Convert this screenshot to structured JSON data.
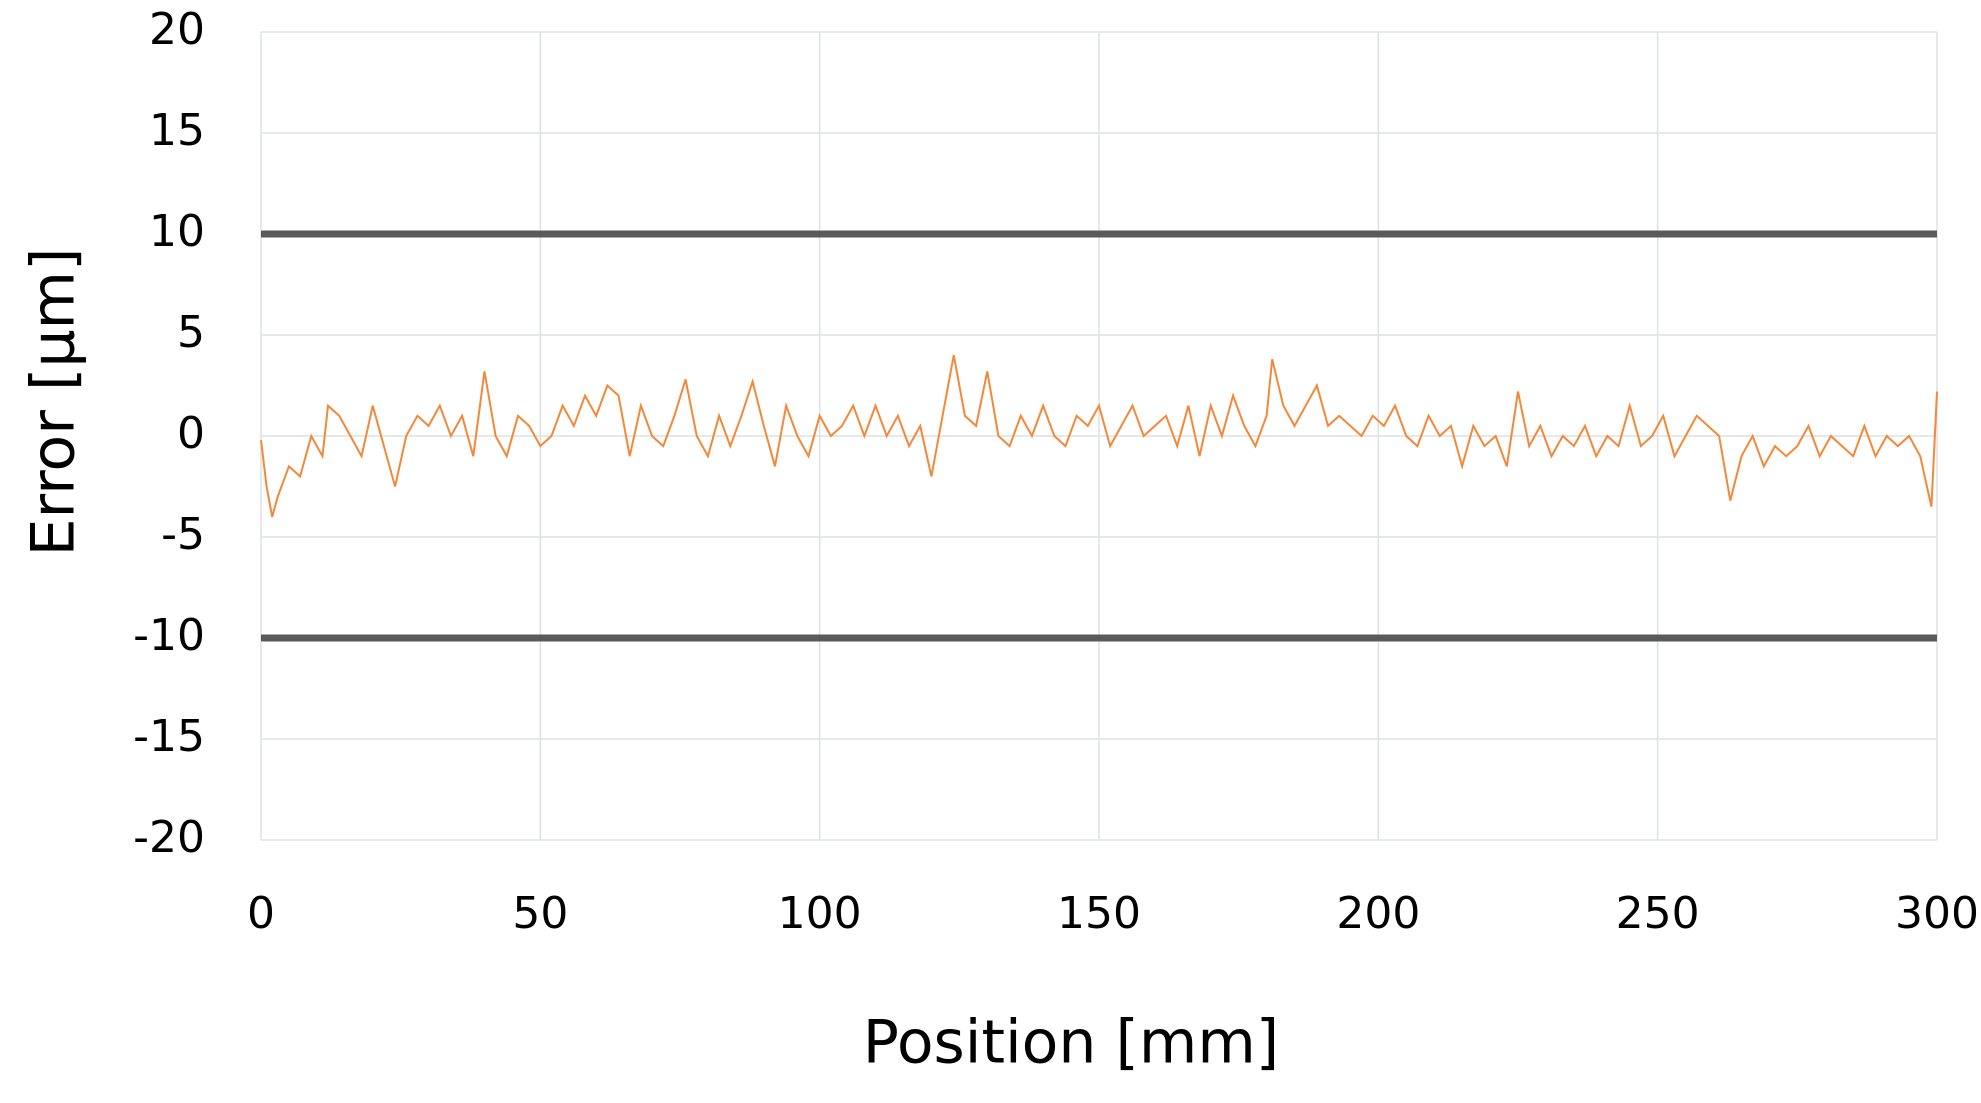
{
  "chart_data": {
    "type": "line",
    "xlabel": "Position [mm]",
    "ylabel": "Error [µm]",
    "xlim": [
      0,
      300
    ],
    "xticks": [
      0,
      50,
      100,
      150,
      200,
      250,
      300
    ],
    "ylim": [
      -20,
      20
    ],
    "yticks": [
      -20,
      -15,
      -10,
      -5,
      0,
      5,
      10,
      15,
      20
    ],
    "grid": true,
    "series": [
      {
        "color": "#f4883a",
        "width": 2,
        "x": [
          0,
          1,
          2,
          3,
          5,
          7,
          9,
          11,
          12,
          14,
          16,
          18,
          20,
          22,
          24,
          26,
          28,
          30,
          32,
          34,
          36,
          38,
          40,
          42,
          44,
          46,
          48,
          50,
          52,
          54,
          56,
          58,
          60,
          62,
          64,
          66,
          68,
          70,
          72,
          74,
          76,
          78,
          80,
          82,
          84,
          86,
          88,
          90,
          92,
          94,
          96,
          98,
          100,
          102,
          104,
          106,
          108,
          110,
          112,
          114,
          116,
          118,
          120,
          122,
          124,
          126,
          128,
          130,
          132,
          134,
          136,
          138,
          140,
          142,
          144,
          146,
          148,
          150,
          152,
          154,
          156,
          158,
          160,
          162,
          164,
          166,
          168,
          170,
          172,
          174,
          176,
          178,
          180,
          181,
          183,
          185,
          187,
          189,
          191,
          193,
          195,
          197,
          199,
          201,
          203,
          205,
          207,
          209,
          211,
          213,
          215,
          217,
          219,
          221,
          223,
          225,
          227,
          229,
          231,
          233,
          235,
          237,
          239,
          241,
          243,
          245,
          247,
          249,
          251,
          253,
          255,
          257,
          259,
          261,
          263,
          265,
          267,
          269,
          271,
          273,
          275,
          277,
          279,
          281,
          283,
          285,
          287,
          289,
          291,
          293,
          295,
          297,
          299,
          300
        ],
        "values": [
          -0.2,
          -2.5,
          -4,
          -3,
          -1.5,
          -2,
          0,
          -1,
          1.5,
          1,
          0,
          -1,
          1.5,
          -0.5,
          -2.5,
          0,
          1,
          0.5,
          1.5,
          0,
          1,
          -1,
          3.2,
          0,
          -1,
          1,
          0.5,
          -0.5,
          0,
          1.5,
          0.5,
          2,
          1,
          2.5,
          2,
          -1,
          1.5,
          0,
          -0.5,
          1,
          2.8,
          0,
          -1,
          1,
          -0.5,
          1,
          2.7,
          0.5,
          -1.5,
          1.5,
          0,
          -1,
          1,
          0,
          0.5,
          1.5,
          0,
          1.5,
          0,
          1,
          -0.5,
          0.5,
          -2,
          1,
          4,
          1,
          0.5,
          3.2,
          0,
          -0.5,
          1,
          0,
          1.5,
          0,
          -0.5,
          1,
          0.5,
          1.5,
          -0.5,
          0.5,
          1.5,
          0,
          0.5,
          1,
          -0.5,
          1.5,
          -1,
          1.5,
          0,
          2,
          0.5,
          -0.5,
          1,
          3.8,
          1.5,
          0.5,
          1.5,
          2.5,
          0.5,
          1,
          0.5,
          0,
          1,
          0.5,
          1.5,
          0,
          -0.5,
          1,
          0,
          0.5,
          -1.5,
          0.5,
          -0.5,
          0,
          -1.5,
          2.2,
          -0.5,
          0.5,
          -1,
          0,
          -0.5,
          0.5,
          -1,
          0,
          -0.5,
          1.5,
          -0.5,
          0,
          1,
          -1,
          0,
          1,
          0.5,
          0,
          -3.2,
          -1,
          0,
          -1.5,
          -0.5,
          -1,
          -0.5,
          0.5,
          -1,
          0,
          -0.5,
          -1,
          0.5,
          -1,
          0,
          -0.5,
          0,
          -1,
          -3.5,
          2.2
        ]
      },
      {
        "color": "#595959",
        "width": 7,
        "x": [
          0,
          300
        ],
        "values": [
          10,
          10
        ]
      },
      {
        "color": "#595959",
        "width": 7,
        "x": [
          0,
          300
        ],
        "values": [
          -10,
          -10
        ]
      }
    ]
  }
}
